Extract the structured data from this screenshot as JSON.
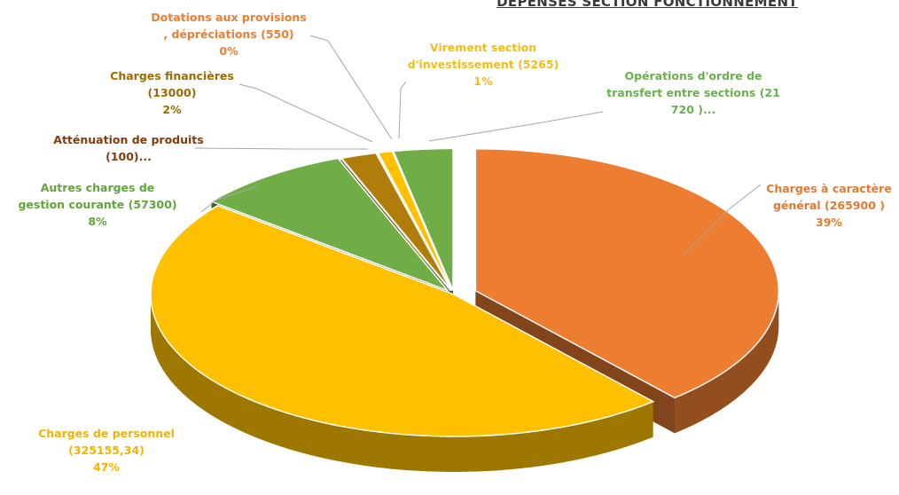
{
  "title": "DEPENSES SECTION FONCTIONNEMENT",
  "chart_data": {
    "type": "pie",
    "title": "DEPENSES SECTION FONCTIONNEMENT",
    "slices": [
      {
        "label": "Charges à caractère général",
        "value": 265900,
        "value_text": "(265900 )",
        "percent": "39%",
        "color": "#ED7D31"
      },
      {
        "label": "Charges de personnel",
        "value": 325155.34,
        "value_text": "(325155,34)",
        "percent": "47%",
        "color": "#FFC000"
      },
      {
        "label": "Autres charges de gestion courante",
        "value": 57300,
        "value_text": "(57300)",
        "percent": "8%",
        "color": "#70AD47"
      },
      {
        "label": "Atténuation de produits",
        "value": 100,
        "value_text": "(100)...",
        "percent": "",
        "color": "#843C0C"
      },
      {
        "label": "Charges financières",
        "value": 13000,
        "value_text": "(13000)",
        "percent": "2%",
        "color": "#B07D0A"
      },
      {
        "label": "Dotations aux provisions , dépréciations",
        "value": 550,
        "value_text": "(550)",
        "percent": "0%",
        "color": "#ED7D31"
      },
      {
        "label": "Virement section d'investissement",
        "value": 5265,
        "value_text": "(5265)",
        "percent": "1%",
        "color": "#FFC000"
      },
      {
        "label": "Opérations d'ordre de transfert entre sections",
        "value": 21720,
        "value_text": "(21 720 )...",
        "percent": "",
        "color": "#70AD47"
      }
    ]
  },
  "labels": {
    "charges_generales": {
      "line1": "Charges à caractère",
      "line2": "général (265900 )",
      "line3": "39%",
      "color": "#E8772E"
    },
    "charges_personnel": {
      "line1": "Charges de personnel",
      "line2": "(325155,34)",
      "line3": "47%",
      "color": "#F0B400"
    },
    "autres_charges": {
      "line1": "Autres charges de",
      "line2": "gestion courante (57300)",
      "line3": "8%",
      "color": "#5FA63A"
    },
    "attenuation": {
      "line1": "Atténuation de produits",
      "line2": "(100)...",
      "color": "#843C0C"
    },
    "charges_financieres": {
      "line1": "Charges financières",
      "line2": "(13000)",
      "line3": "2%",
      "color": "#9C6A00"
    },
    "dotations": {
      "line1": "Dotations aux provisions",
      "line2": ", dépréciations (550)",
      "line3": "0%",
      "color": "#ED7D31"
    },
    "virement": {
      "line1": "Virement section",
      "line2": "d'investissement (5265)",
      "line3": "1%",
      "color": "#F5BC12"
    },
    "operations": {
      "line1": "Opérations d'ordre de",
      "line2": "transfert entre sections (21",
      "line3": "720 )...",
      "color": "#6AB04C"
    }
  }
}
